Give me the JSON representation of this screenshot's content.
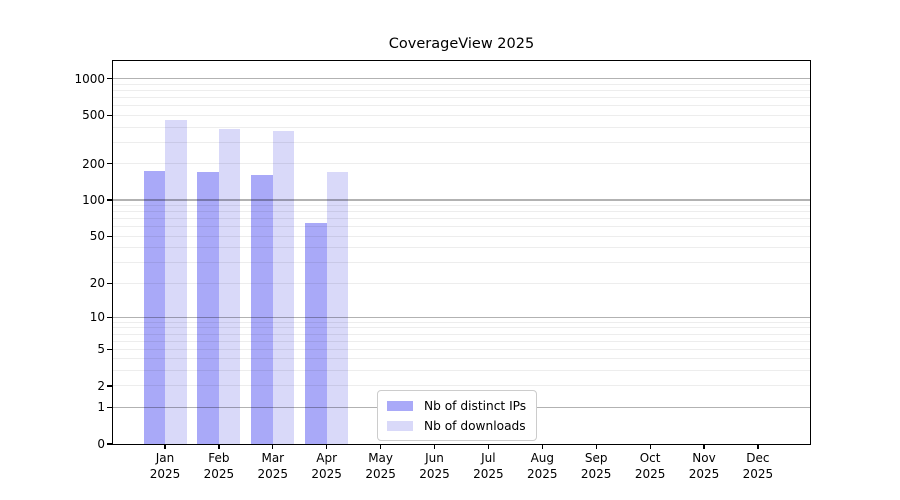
{
  "title": "CoverageView 2025",
  "chart_data": {
    "type": "bar",
    "title": "CoverageView 2025",
    "months": [
      "Jan",
      "Feb",
      "Mar",
      "Apr",
      "May",
      "Jun",
      "Jul",
      "Aug",
      "Sep",
      "Oct",
      "Nov",
      "Dec"
    ],
    "year": "2025",
    "categories": [
      "Jan 2025",
      "Feb 2025",
      "Mar 2025",
      "Apr 2025",
      "May 2025",
      "Jun 2025",
      "Jul 2025",
      "Aug 2025",
      "Sep 2025",
      "Oct 2025",
      "Nov 2025",
      "Dec 2025"
    ],
    "series": [
      {
        "name": "Nb of distinct IPs",
        "color": "#a9a9f8",
        "values": [
          173,
          170,
          162,
          64,
          0,
          0,
          0,
          0,
          0,
          0,
          0,
          0
        ]
      },
      {
        "name": "Nb of downloads",
        "color": "#d9d9f9",
        "values": [
          460,
          390,
          375,
          172,
          0,
          0,
          0,
          0,
          0,
          0,
          0,
          0
        ]
      }
    ],
    "xlabel": "",
    "ylabel": "",
    "yscale": "log1p",
    "yticks": [
      0,
      1,
      2,
      5,
      10,
      20,
      50,
      100,
      200,
      500,
      1000
    ],
    "ylim": [
      0,
      1400
    ],
    "grid": "horizontal, major decades darker + faint log minors",
    "legend_position": "inside bottom, left of center",
    "colors": {
      "bar_distinct_ips": "#a9a9f8",
      "bar_downloads": "#d9d9f9",
      "axis_frame": "#000000",
      "major_grid": "#b3b3b3",
      "minor_grid": "#ececec",
      "background": "#ffffff",
      "legend_border": "#cccccc"
    }
  },
  "legend": {
    "entries": [
      {
        "label": "Nb of distinct IPs",
        "color": "#a9a9f8"
      },
      {
        "label": "Nb of downloads",
        "color": "#d9d9f9"
      }
    ]
  }
}
